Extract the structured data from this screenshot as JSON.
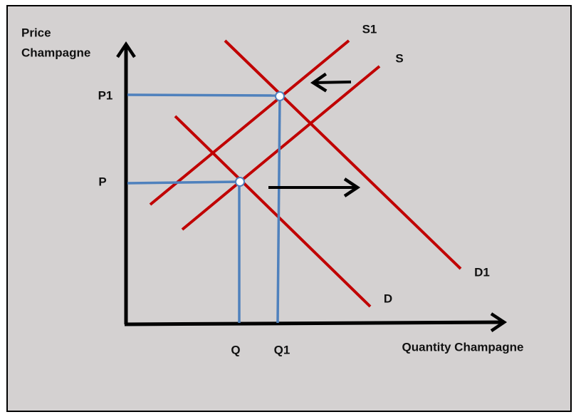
{
  "axes": {
    "y_label_lines": [
      "Price",
      "Champagne"
    ],
    "x_label": "Quantity Champagne"
  },
  "curves": [
    {
      "label": "S1"
    },
    {
      "label": "S"
    },
    {
      "label": "D1"
    },
    {
      "label": "D"
    }
  ],
  "price_levels": [
    "P1",
    "P"
  ],
  "quantity_levels": [
    "Q",
    "Q1"
  ]
}
